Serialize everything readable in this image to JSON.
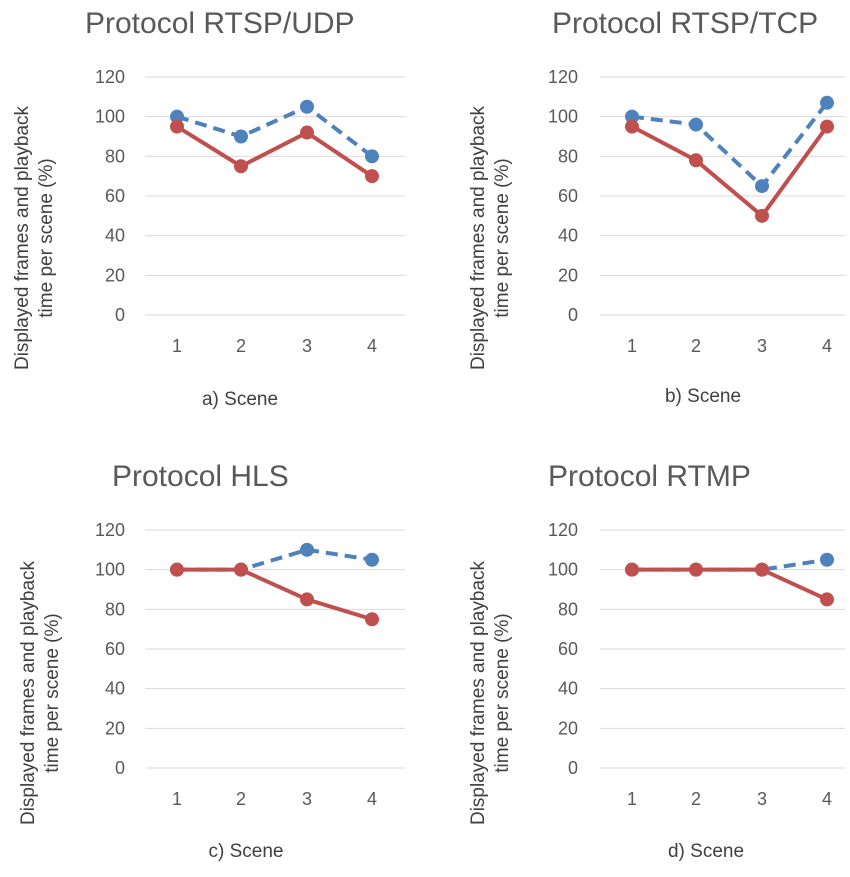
{
  "series_colors": {
    "dashed": "#4f81bd",
    "solid": "#c0504d"
  },
  "chart_data": [
    {
      "type": "line",
      "title": "Protocol RTSP/UDP",
      "xlabel": "a) Scene",
      "ylabel_lines": [
        "Displayed frames and playback",
        "time per  scene (%)"
      ],
      "categories": [
        "1",
        "2",
        "3",
        "4"
      ],
      "yticks": [
        "0",
        "20",
        "40",
        "60",
        "80",
        "100",
        "120"
      ],
      "ylim": [
        0,
        120
      ],
      "grid": true,
      "series": [
        {
          "style": "dashed",
          "color": "#4f81bd",
          "values": [
            100,
            90,
            105,
            80
          ]
        },
        {
          "style": "solid",
          "color": "#c0504d",
          "values": [
            95,
            75,
            92,
            70
          ]
        }
      ]
    },
    {
      "type": "line",
      "title": "Protocol RTSP/TCP",
      "xlabel": "b) Scene",
      "ylabel_lines": [
        "Displayed frames and playback",
        "time per  scene (%)"
      ],
      "categories": [
        "1",
        "2",
        "3",
        "4"
      ],
      "yticks": [
        "0",
        "20",
        "40",
        "60",
        "80",
        "100",
        "120"
      ],
      "ylim": [
        0,
        120
      ],
      "grid": true,
      "series": [
        {
          "style": "dashed",
          "color": "#4f81bd",
          "values": [
            100,
            96,
            65,
            107
          ]
        },
        {
          "style": "solid",
          "color": "#c0504d",
          "values": [
            95,
            78,
            50,
            95
          ]
        }
      ]
    },
    {
      "type": "line",
      "title": "Protocol HLS",
      "xlabel": "c) Scene",
      "ylabel_lines": [
        "Displayed frames and playback",
        "time per  scene (%)"
      ],
      "categories": [
        "1",
        "2",
        "3",
        "4"
      ],
      "yticks": [
        "0",
        "20",
        "40",
        "60",
        "80",
        "100",
        "120"
      ],
      "ylim": [
        0,
        120
      ],
      "grid": true,
      "series": [
        {
          "style": "dashed",
          "color": "#4f81bd",
          "values": [
            100,
            100,
            110,
            105
          ]
        },
        {
          "style": "solid",
          "color": "#c0504d",
          "values": [
            100,
            100,
            85,
            75
          ]
        }
      ]
    },
    {
      "type": "line",
      "title": "Protocol RTMP",
      "xlabel": "d) Scene",
      "ylabel_lines": [
        "Displayed frames and playback",
        "time per  scene (%)"
      ],
      "categories": [
        "1",
        "2",
        "3",
        "4"
      ],
      "yticks": [
        "0",
        "20",
        "40",
        "60",
        "80",
        "100",
        "120"
      ],
      "ylim": [
        0,
        120
      ],
      "grid": true,
      "series": [
        {
          "style": "dashed",
          "color": "#4f81bd",
          "values": [
            100,
            100,
            100,
            105
          ]
        },
        {
          "style": "solid",
          "color": "#c0504d",
          "values": [
            100,
            100,
            100,
            85
          ]
        }
      ]
    }
  ]
}
